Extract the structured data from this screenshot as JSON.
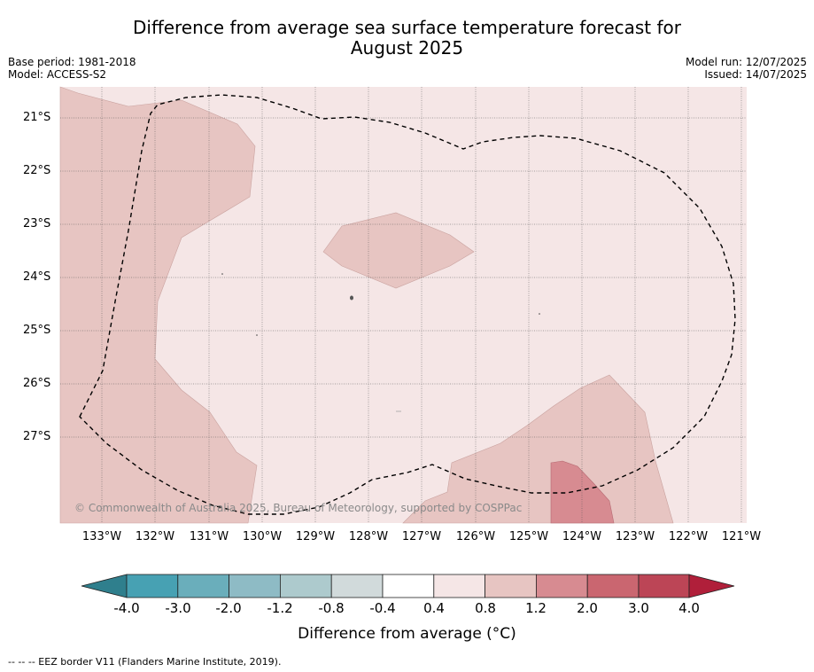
{
  "title_line1": "Difference from average sea surface temperature forecast for",
  "title_line2": "August 2025",
  "base_period": "Base period: 1981-2018",
  "model": "Model: ACCESS-S2",
  "model_run": "Model run: 12/07/2025",
  "issued": "Issued: 14/07/2025",
  "copyright": "© Commonwealth of Australia 2025, Bureau of Meteorology, supported by COSPPac",
  "lat_labels": [
    "21°S",
    "22°S",
    "23°S",
    "24°S",
    "25°S",
    "26°S",
    "27°S"
  ],
  "lon_labels": [
    "133°W",
    "132°W",
    "131°W",
    "130°W",
    "129°W",
    "128°W",
    "127°W",
    "126°W",
    "125°W",
    "124°W",
    "123°W",
    "122°W",
    "121°W"
  ],
  "colorbar": {
    "title": "Difference from average (°C)",
    "ticks": [
      "-4.0",
      "-3.0",
      "-2.0",
      "-1.2",
      "-0.8",
      "-0.4",
      "0.4",
      "0.8",
      "1.2",
      "2.0",
      "3.0",
      "4.0"
    ],
    "colors": [
      "#2f7f8d",
      "#47a1b3",
      "#6aaebb",
      "#8ebbc5",
      "#adcacd",
      "#d1dadb",
      "#ffffff",
      "#f5e6e6",
      "#e7c5c2",
      "#d78b91",
      "#ca6670",
      "#bc4556",
      "#b01f3a"
    ]
  },
  "fill_colors": {
    "base": "#f5e6e6",
    "warm": "#e7c5c2",
    "hot": "#d78b91"
  },
  "footnote": "-- -- -- EEZ border V11 (Flanders Marine Institute, 2019)."
}
